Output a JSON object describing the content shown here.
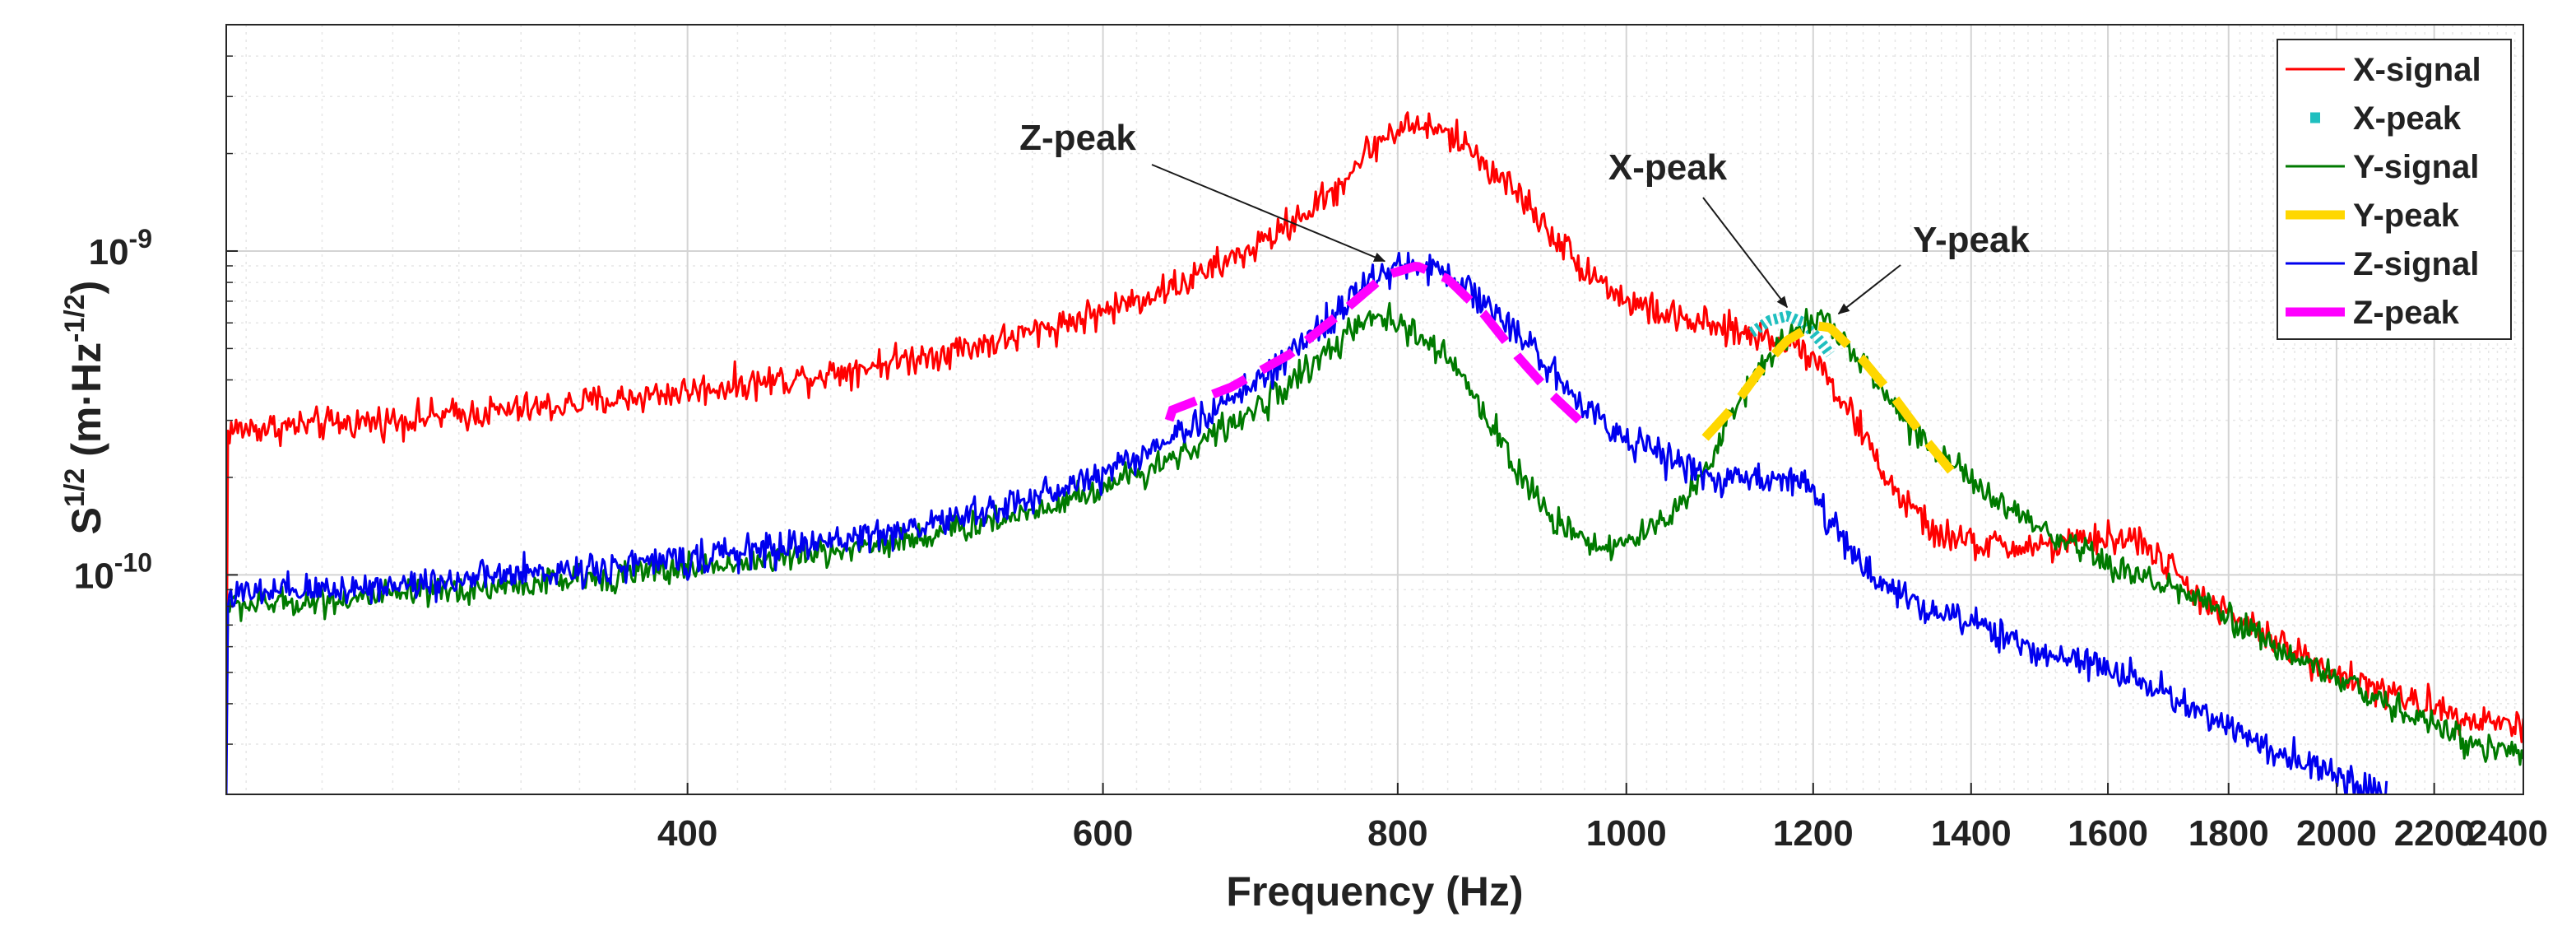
{
  "chart_data": {
    "type": "line",
    "xscale": "log",
    "yscale": "log",
    "xlim": [
      255,
      2400
    ],
    "ylim": [
      2.1e-11,
      5e-09
    ],
    "xlabel": "Frequency (Hz)",
    "ylabel_base": "S",
    "ylabel_sup": "1/2",
    "ylabel_units_pre": " (m·Hz",
    "ylabel_units_sup": "-1/2",
    "ylabel_units_post": ")",
    "grid": true,
    "legend_position": "top-right",
    "x_ticks": [
      400,
      600,
      800,
      1000,
      1200,
      1400,
      1600,
      1800,
      2000,
      2200,
      2400
    ],
    "x_tick_labels": [
      "400",
      "600",
      "800",
      "1000",
      "1200",
      "1400",
      "1600",
      "1800",
      "2000",
      "2200",
      "2400"
    ],
    "y_ticks": [
      {
        "value": 1e-10,
        "base": "10",
        "exp": "-10"
      },
      {
        "value": 1e-09,
        "base": "10",
        "exp": "-9"
      }
    ],
    "series": [
      {
        "name": "X-signal",
        "style": "solid",
        "color": "#ff0000",
        "noise": 0.05,
        "points": [
          [
            255,
            2.8e-10
          ],
          [
            300,
            3e-10
          ],
          [
            350,
            3.3e-10
          ],
          [
            400,
            3.7e-10
          ],
          [
            450,
            4.1e-10
          ],
          [
            500,
            4.7e-10
          ],
          [
            550,
            5.4e-10
          ],
          [
            600,
            6.5e-10
          ],
          [
            650,
            8e-10
          ],
          [
            700,
            1.05e-09
          ],
          [
            750,
            1.5e-09
          ],
          [
            780,
            2.1e-09
          ],
          [
            800,
            2.4e-09
          ],
          [
            820,
            2.45e-09
          ],
          [
            850,
            2.2e-09
          ],
          [
            900,
            1.5e-09
          ],
          [
            950,
            9.5e-10
          ],
          [
            1000,
            7e-10
          ],
          [
            1050,
            6.2e-10
          ],
          [
            1100,
            5.7e-10
          ],
          [
            1150,
            5.4e-10
          ],
          [
            1180,
            5.2e-10
          ],
          [
            1200,
            4.8e-10
          ],
          [
            1250,
            3e-10
          ],
          [
            1300,
            1.8e-10
          ],
          [
            1350,
            1.35e-10
          ],
          [
            1400,
            1.25e-10
          ],
          [
            1450,
            1.22e-10
          ],
          [
            1500,
            1.22e-10
          ],
          [
            1550,
            1.25e-10
          ],
          [
            1600,
            1.3e-10
          ],
          [
            1650,
            1.28e-10
          ],
          [
            1700,
            1.05e-10
          ],
          [
            1750,
            8.5e-11
          ],
          [
            1800,
            7.5e-11
          ],
          [
            1900,
            6e-11
          ],
          [
            2000,
            5e-11
          ],
          [
            2100,
            4.3e-11
          ],
          [
            2200,
            3.9e-11
          ],
          [
            2300,
            3.6e-11
          ],
          [
            2400,
            3.4e-11
          ]
        ]
      },
      {
        "name": "X-peak",
        "style": "dotted",
        "color": "#1fbfbf",
        "points": [
          [
            1130,
            5.6e-10
          ],
          [
            1150,
            6.1e-10
          ],
          [
            1170,
            6.3e-10
          ],
          [
            1190,
            6e-10
          ],
          [
            1210,
            5.2e-10
          ],
          [
            1220,
            4.8e-10
          ]
        ]
      },
      {
        "name": "Y-signal",
        "style": "solid",
        "color": "#007a00",
        "noise": 0.045,
        "points": [
          [
            255,
            8e-11
          ],
          [
            300,
            8.6e-11
          ],
          [
            350,
            9.5e-11
          ],
          [
            400,
            1.05e-10
          ],
          [
            450,
            1.15e-10
          ],
          [
            500,
            1.3e-10
          ],
          [
            550,
            1.52e-10
          ],
          [
            600,
            1.85e-10
          ],
          [
            650,
            2.4e-10
          ],
          [
            700,
            3.3e-10
          ],
          [
            750,
            5e-10
          ],
          [
            780,
            6.2e-10
          ],
          [
            800,
            6e-10
          ],
          [
            830,
            5e-10
          ],
          [
            850,
            4.2e-10
          ],
          [
            880,
            2.8e-10
          ],
          [
            900,
            2.05e-10
          ],
          [
            930,
            1.5e-10
          ],
          [
            960,
            1.3e-10
          ],
          [
            980,
            1.22e-10
          ],
          [
            1000,
            1.25e-10
          ],
          [
            1030,
            1.4e-10
          ],
          [
            1060,
            1.75e-10
          ],
          [
            1080,
            2.1e-10
          ],
          [
            1100,
            2.8e-10
          ],
          [
            1130,
            4e-10
          ],
          [
            1160,
            5.2e-10
          ],
          [
            1190,
            6.1e-10
          ],
          [
            1210,
            6.2e-10
          ],
          [
            1240,
            5.2e-10
          ],
          [
            1280,
            3.8e-10
          ],
          [
            1330,
            2.7e-10
          ],
          [
            1400,
            1.95e-10
          ],
          [
            1450,
            1.6e-10
          ],
          [
            1500,
            1.35e-10
          ],
          [
            1550,
            1.2e-10
          ],
          [
            1600,
            1.08e-10
          ],
          [
            1650,
            9.8e-11
          ],
          [
            1700,
            9.2e-11
          ],
          [
            1750,
            8.3e-11
          ],
          [
            1800,
            7.3e-11
          ],
          [
            1900,
            5.8e-11
          ],
          [
            2000,
            4.8e-11
          ],
          [
            2100,
            4e-11
          ],
          [
            2200,
            3.4e-11
          ],
          [
            2300,
            3e-11
          ],
          [
            2400,
            2.8e-11
          ]
        ]
      },
      {
        "name": "Y-peak",
        "style": "dashed",
        "color": "#ffd700",
        "points": [
          [
            1080,
            2.65e-10
          ],
          [
            1110,
            3.3e-10
          ],
          [
            1140,
            4.3e-10
          ],
          [
            1170,
            5.3e-10
          ],
          [
            1200,
            5.9e-10
          ],
          [
            1220,
            5.8e-10
          ],
          [
            1260,
            4.6e-10
          ],
          [
            1300,
            3.5e-10
          ],
          [
            1340,
            2.6e-10
          ],
          [
            1380,
            2e-10
          ]
        ]
      },
      {
        "name": "Z-signal",
        "style": "solid",
        "color": "#0000ee",
        "noise": 0.05,
        "points": [
          [
            255,
            8.6e-11
          ],
          [
            300,
            9.3e-11
          ],
          [
            350,
            1.02e-10
          ],
          [
            400,
            1.12e-10
          ],
          [
            450,
            1.24e-10
          ],
          [
            500,
            1.4e-10
          ],
          [
            550,
            1.65e-10
          ],
          [
            600,
            2.05e-10
          ],
          [
            650,
            2.8e-10
          ],
          [
            700,
            4e-10
          ],
          [
            750,
            6.2e-10
          ],
          [
            780,
            8.2e-10
          ],
          [
            800,
            8.9e-10
          ],
          [
            820,
            8.9e-10
          ],
          [
            850,
            8.2e-10
          ],
          [
            900,
            5.5e-10
          ],
          [
            950,
            3.6e-10
          ],
          [
            1000,
            2.65e-10
          ],
          [
            1050,
            2.2e-10
          ],
          [
            1100,
            1.95e-10
          ],
          [
            1150,
            1.98e-10
          ],
          [
            1175,
            2.05e-10
          ],
          [
            1200,
            1.8e-10
          ],
          [
            1250,
            1.1e-10
          ],
          [
            1300,
            8.8e-11
          ],
          [
            1350,
            7.9e-11
          ],
          [
            1400,
            7e-11
          ],
          [
            1450,
            6.3e-11
          ],
          [
            1500,
            5.8e-11
          ],
          [
            1550,
            5.4e-11
          ],
          [
            1600,
            5.1e-11
          ],
          [
            1650,
            4.8e-11
          ],
          [
            1700,
            4.3e-11
          ],
          [
            1750,
            3.8e-11
          ],
          [
            1800,
            3.3e-11
          ],
          [
            1900,
            2.8e-11
          ],
          [
            2000,
            2.4e-11
          ],
          [
            2100,
            2.1e-11
          ]
        ]
      },
      {
        "name": "Z-peak",
        "style": "dashed",
        "color": "#ff00ff",
        "points": [
          [
            640,
            3.2e-10
          ],
          [
            680,
            3.8e-10
          ],
          [
            720,
            4.8e-10
          ],
          [
            760,
            6.6e-10
          ],
          [
            790,
            8.4e-10
          ],
          [
            815,
            9e-10
          ],
          [
            840,
            8.2e-10
          ],
          [
            870,
            6.4e-10
          ],
          [
            900,
            4.7e-10
          ],
          [
            930,
            3.6e-10
          ],
          [
            955,
            3e-10
          ]
        ]
      }
    ],
    "annotations": [
      {
        "text": "Z-peak",
        "arrow_to": [
          790,
          9.3e-10
        ]
      },
      {
        "text": "X-peak",
        "arrow_to": [
          1170,
          6.7e-10
        ]
      },
      {
        "text": "Y-peak",
        "arrow_to": [
          1230,
          6.4e-10
        ]
      }
    ]
  }
}
